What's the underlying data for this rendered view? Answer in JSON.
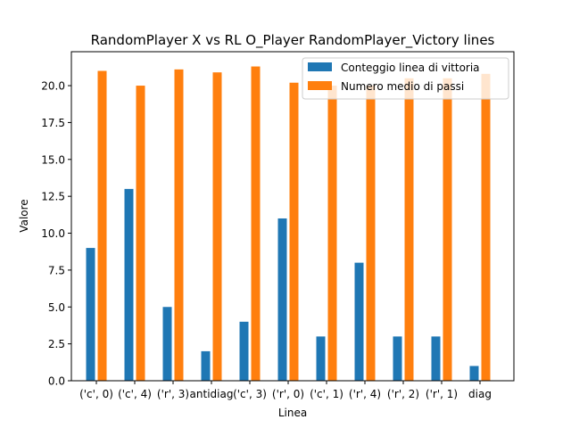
{
  "chart_data": {
    "type": "bar",
    "title": "RandomPlayer X vs RL O_Player RandomPlayer_Victory lines",
    "xlabel": "Linea",
    "ylabel": "Valore",
    "categories": [
      "('c', 0)",
      "('c', 4)",
      "('r', 3)",
      "antidiag",
      "('c', 3)",
      "('r', 0)",
      "('c', 1)",
      "('r', 4)",
      "('r', 2)",
      "('r', 1)",
      "diag"
    ],
    "series": [
      {
        "name": "Conteggio linea di vittoria",
        "color": "#1f77b4",
        "values": [
          9,
          13,
          5,
          2,
          4,
          11,
          3,
          8,
          3,
          3,
          1
        ]
      },
      {
        "name": "Numero medio di passi",
        "color": "#ff7f0e",
        "values": [
          21.0,
          20.0,
          21.1,
          20.9,
          21.3,
          20.2,
          20.0,
          20.0,
          20.5,
          20.5,
          20.8
        ]
      }
    ],
    "yticks": [
      "0.0",
      "2.5",
      "5.0",
      "7.5",
      "10.0",
      "12.5",
      "15.0",
      "17.5",
      "20.0"
    ],
    "ylim": [
      0,
      22.3
    ],
    "grid": false,
    "legend_position": "upper right"
  }
}
